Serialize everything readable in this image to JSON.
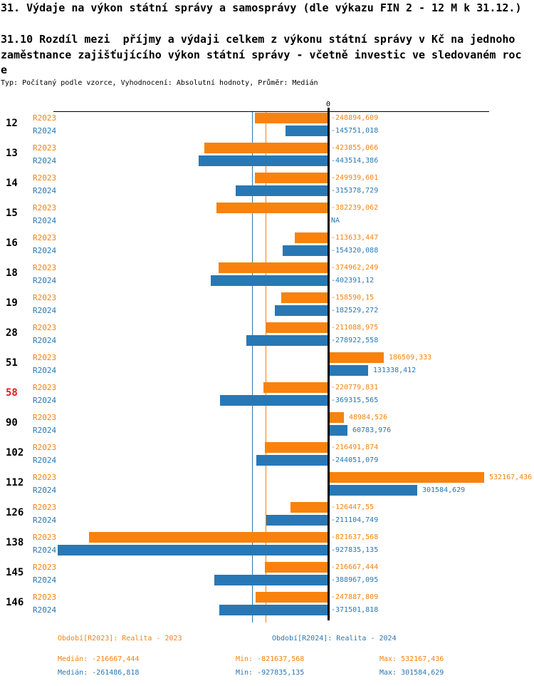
{
  "header": {
    "title": "31. Výdaje na výkon státní správy a samosprávy (dle výkazu FIN 2 - 12 M k 31.12.)",
    "subtitle_lines": [
      "31.10 Rozdíl mezi  příjmy a výdaji celkem z výkonu státní správy v Kč na jednoho",
      "zaměstnance zajišťujícího výkon státní správy - včetně investic ve sledovaném roc",
      "e"
    ],
    "meta": "Typ: Počítaný podle vzorce, Vyhodnocení: Absolutní hodnoty, Průměr: Medián"
  },
  "colors": {
    "r2023": "#F8820D",
    "r2024": "#2878B5",
    "highlight": "#E8191C",
    "axis": "#000000"
  },
  "chart_data": {
    "type": "bar",
    "orientation": "horizontal",
    "unit": "Kč",
    "axis": {
      "zero_label": "0"
    },
    "na_text": "NA",
    "highlighted_category": "58",
    "series": [
      {
        "name": "R2023",
        "color": "#F8820D"
      },
      {
        "name": "R2024",
        "color": "#2878B5"
      }
    ],
    "categories": [
      "12",
      "13",
      "14",
      "15",
      "16",
      "18",
      "19",
      "28",
      "51",
      "58",
      "90",
      "102",
      "112",
      "126",
      "138",
      "145",
      "146"
    ],
    "rows": [
      {
        "category": "12",
        "values": {
          "R2023": -248894.609,
          "R2024": -145751.018
        },
        "labels": {
          "R2023": "-248894,609",
          "R2024": "-145751,018"
        }
      },
      {
        "category": "13",
        "values": {
          "R2023": -423855.066,
          "R2024": -443514.386
        },
        "labels": {
          "R2023": "-423855,066",
          "R2024": "-443514,386"
        }
      },
      {
        "category": "14",
        "values": {
          "R2023": -249939.601,
          "R2024": -315378.729
        },
        "labels": {
          "R2023": "-249939,601",
          "R2024": "-315378,729"
        }
      },
      {
        "category": "15",
        "values": {
          "R2023": -382239.062,
          "R2024": null
        },
        "labels": {
          "R2023": "-382239,062",
          "R2024": "NA"
        }
      },
      {
        "category": "16",
        "values": {
          "R2023": -113633.447,
          "R2024": -154320.088
        },
        "labels": {
          "R2023": "-113633,447",
          "R2024": "-154320,088"
        }
      },
      {
        "category": "18",
        "values": {
          "R2023": -374962.249,
          "R2024": -402391.12
        },
        "labels": {
          "R2023": "-374962,249",
          "R2024": "-402391,12"
        }
      },
      {
        "category": "19",
        "values": {
          "R2023": -158590.15,
          "R2024": -182529.272
        },
        "labels": {
          "R2023": "-158590,15",
          "R2024": "-182529,272"
        }
      },
      {
        "category": "28",
        "values": {
          "R2023": -211088.975,
          "R2024": -278922.558
        },
        "labels": {
          "R2023": "-211088,975",
          "R2024": "-278922,558"
        }
      },
      {
        "category": "51",
        "values": {
          "R2023": 186509.333,
          "R2024": 131338.412
        },
        "labels": {
          "R2023": "186509,333",
          "R2024": "131338,412"
        }
      },
      {
        "category": "58",
        "values": {
          "R2023": -220779.831,
          "R2024": -369315.565
        },
        "labels": {
          "R2023": "-220779,831",
          "R2024": "-369315,565"
        }
      },
      {
        "category": "90",
        "values": {
          "R2023": 48984.526,
          "R2024": 60783.976
        },
        "labels": {
          "R2023": "48984,526",
          "R2024": "60783,976"
        }
      },
      {
        "category": "102",
        "values": {
          "R2023": -216491.874,
          "R2024": -244051.079
        },
        "labels": {
          "R2023": "-216491,874",
          "R2024": "-244051,079"
        }
      },
      {
        "category": "112",
        "values": {
          "R2023": 532167.436,
          "R2024": 301584.629
        },
        "labels": {
          "R2023": "532167,436",
          "R2024": "301584,629"
        }
      },
      {
        "category": "126",
        "values": {
          "R2023": -126447.55,
          "R2024": -211104.749
        },
        "labels": {
          "R2023": "-126447,55",
          "R2024": "-211104,749"
        }
      },
      {
        "category": "138",
        "values": {
          "R2023": -821637.568,
          "R2024": -927835.135
        },
        "labels": {
          "R2023": "-821637,568",
          "R2024": "-927835,135"
        }
      },
      {
        "category": "145",
        "values": {
          "R2023": -216667.444,
          "R2024": -388967.095
        },
        "labels": {
          "R2023": "-216667,444",
          "R2024": "-388967,095"
        }
      },
      {
        "category": "146",
        "values": {
          "R2023": -247887.809,
          "R2024": -371501.818
        },
        "labels": {
          "R2023": "-247887,809",
          "R2024": "-371501,818"
        }
      }
    ],
    "reference_lines": [
      {
        "name": "median-R2023",
        "value": -216667.444,
        "color": "#F8820D"
      },
      {
        "name": "median-R2024",
        "value": -261486.818,
        "color": "#2878B5"
      }
    ]
  },
  "footer": {
    "period_r2023": "Období[R2023]: Realita - 2023",
    "period_r2024": "Období[R2024]: Realita - 2024",
    "stats_r2023": {
      "median": "Medián: -216667,444",
      "min": "Min: -821637,568",
      "max": "Max: 532167,436"
    },
    "stats_r2024": {
      "median": "Medián: -261486,818",
      "min": "Min: -927835,135",
      "max": "Max: 301584,629"
    }
  }
}
